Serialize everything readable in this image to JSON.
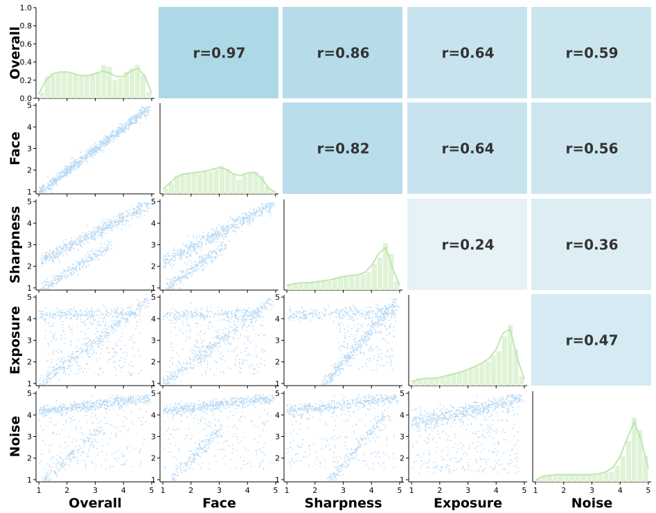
{
  "chart_data": {
    "type": "pairplot",
    "variables": [
      "Overall",
      "Face",
      "Sharpness",
      "Exposure",
      "Noise"
    ],
    "axis_range": [
      0.9,
      5.1
    ],
    "ticks": [
      "1",
      "2",
      "3",
      "4",
      "5"
    ],
    "density_axis": {
      "range": [
        0,
        1.0
      ],
      "ticks": [
        "0.0",
        "0.2",
        "0.4",
        "0.6",
        "0.8",
        "1.0"
      ]
    },
    "colors": {
      "scatter": "#9ecbf0",
      "hist_fill": "#dff3d6",
      "kde_line": "#bfe6b0",
      "corr_high": "#add8e6",
      "corr_low": "#eaf3f8",
      "corr_text": "#333333"
    },
    "correlations": [
      {
        "row": "Overall",
        "col": "Face",
        "label": "r=0.97",
        "value": 0.97
      },
      {
        "row": "Overall",
        "col": "Sharpness",
        "label": "r=0.86",
        "value": 0.86
      },
      {
        "row": "Overall",
        "col": "Exposure",
        "label": "r=0.64",
        "value": 0.64
      },
      {
        "row": "Overall",
        "col": "Noise",
        "label": "r=0.59",
        "value": 0.59
      },
      {
        "row": "Face",
        "col": "Sharpness",
        "label": "r=0.82",
        "value": 0.82
      },
      {
        "row": "Face",
        "col": "Exposure",
        "label": "r=0.64",
        "value": 0.64
      },
      {
        "row": "Face",
        "col": "Noise",
        "label": "r=0.56",
        "value": 0.56
      },
      {
        "row": "Sharpness",
        "col": "Exposure",
        "label": "r=0.24",
        "value": 0.24
      },
      {
        "row": "Sharpness",
        "col": "Noise",
        "label": "r=0.36",
        "value": 0.36
      },
      {
        "row": "Exposure",
        "col": "Noise",
        "label": "r=0.47",
        "value": 0.47
      }
    ],
    "histograms": {
      "bin_edges": [
        1.0,
        1.2,
        1.4,
        1.6,
        1.8,
        2.0,
        2.2,
        2.4,
        2.6,
        2.8,
        3.0,
        3.2,
        3.4,
        3.6,
        3.8,
        4.0,
        4.2,
        4.4,
        4.6,
        4.8,
        5.0
      ],
      "Overall": [
        0.06,
        0.24,
        0.26,
        0.28,
        0.29,
        0.27,
        0.26,
        0.25,
        0.25,
        0.27,
        0.29,
        0.37,
        0.35,
        0.2,
        0.22,
        0.29,
        0.33,
        0.37,
        0.26,
        0.07
      ],
      "Face": [
        0.06,
        0.12,
        0.2,
        0.21,
        0.22,
        0.23,
        0.23,
        0.24,
        0.25,
        0.27,
        0.31,
        0.27,
        0.22,
        0.16,
        0.21,
        0.24,
        0.24,
        0.2,
        0.08,
        0.03
      ],
      "Sharpness": [
        0.07,
        0.08,
        0.08,
        0.09,
        0.09,
        0.09,
        0.1,
        0.1,
        0.12,
        0.14,
        0.16,
        0.16,
        0.17,
        0.17,
        0.2,
        0.29,
        0.36,
        0.52,
        0.4,
        0.1
      ],
      "Exposure": [
        0.06,
        0.08,
        0.08,
        0.08,
        0.09,
        0.1,
        0.12,
        0.14,
        0.15,
        0.16,
        0.19,
        0.21,
        0.24,
        0.27,
        0.33,
        0.38,
        0.54,
        0.67,
        0.4,
        0.1
      ],
      "Noise": [
        0.03,
        0.07,
        0.08,
        0.08,
        0.08,
        0.08,
        0.08,
        0.08,
        0.08,
        0.08,
        0.08,
        0.09,
        0.1,
        0.11,
        0.18,
        0.28,
        0.45,
        0.71,
        0.57,
        0.29
      ]
    },
    "kde": {
      "x": [
        1.0,
        1.25,
        1.5,
        1.75,
        2.0,
        2.25,
        2.5,
        2.75,
        3.0,
        3.25,
        3.5,
        3.75,
        4.0,
        4.25,
        4.5,
        4.75,
        5.0
      ],
      "Overall": [
        0.05,
        0.2,
        0.27,
        0.29,
        0.29,
        0.27,
        0.25,
        0.25,
        0.27,
        0.3,
        0.28,
        0.24,
        0.24,
        0.3,
        0.33,
        0.25,
        0.06
      ],
      "Face": [
        0.05,
        0.12,
        0.19,
        0.22,
        0.23,
        0.24,
        0.25,
        0.27,
        0.29,
        0.27,
        0.22,
        0.2,
        0.23,
        0.24,
        0.17,
        0.06,
        0.02
      ],
      "Sharpness": [
        0.05,
        0.07,
        0.08,
        0.08,
        0.09,
        0.1,
        0.11,
        0.13,
        0.15,
        0.16,
        0.17,
        0.19,
        0.27,
        0.4,
        0.47,
        0.24,
        0.05
      ],
      "Exposure": [
        0.04,
        0.07,
        0.08,
        0.08,
        0.09,
        0.11,
        0.13,
        0.15,
        0.18,
        0.21,
        0.25,
        0.3,
        0.4,
        0.58,
        0.62,
        0.3,
        0.07
      ],
      "Noise": [
        0.02,
        0.06,
        0.07,
        0.08,
        0.08,
        0.08,
        0.08,
        0.08,
        0.08,
        0.09,
        0.11,
        0.16,
        0.28,
        0.48,
        0.66,
        0.45,
        0.15
      ]
    },
    "scatter_relationships": {
      "Face|Overall": {
        "segments": [
          {
            "x0": 1.0,
            "y0": 1.0,
            "x1": 4.9,
            "y1": 4.9,
            "w": 0.12,
            "share": 0.97
          }
        ]
      },
      "Sharpness|Overall": {
        "segments": [
          {
            "x0": 1.0,
            "y0": 2.2,
            "x1": 4.9,
            "y1": 4.9,
            "w": 0.15,
            "share": 0.65
          },
          {
            "x0": 1.1,
            "y0": 1.0,
            "x1": 3.5,
            "y1": 3.0,
            "w": 0.14,
            "share": 0.3
          }
        ]
      },
      "Sharpness|Face": {
        "segments": [
          {
            "x0": 1.0,
            "y0": 2.2,
            "x1": 4.9,
            "y1": 4.9,
            "w": 0.17,
            "share": 0.65
          },
          {
            "x0": 1.1,
            "y0": 1.0,
            "x1": 3.2,
            "y1": 3.0,
            "w": 0.15,
            "share": 0.3
          }
        ]
      },
      "Exposure|Overall": {
        "segments": [
          {
            "x0": 1.0,
            "y0": 1.0,
            "x1": 4.9,
            "y1": 4.9,
            "w": 0.15,
            "share": 0.4
          },
          {
            "x0": 1.0,
            "y0": 4.2,
            "x1": 4.4,
            "y1": 4.3,
            "w": 0.15,
            "share": 0.25
          }
        ],
        "fill": {
          "x": [
            1.2,
            4.6
          ],
          "y": [
            1.4,
            4.4
          ],
          "share": 0.3
        }
      },
      "Exposure|Face": {
        "segments": [
          {
            "x0": 1.0,
            "y0": 1.0,
            "x1": 4.9,
            "y1": 4.9,
            "w": 0.16,
            "share": 0.4
          },
          {
            "x0": 1.0,
            "y0": 4.2,
            "x1": 4.4,
            "y1": 4.3,
            "w": 0.15,
            "share": 0.25
          }
        ],
        "fill": {
          "x": [
            1.2,
            4.6
          ],
          "y": [
            1.4,
            4.4
          ],
          "share": 0.3
        }
      },
      "Exposure|Sharpness": {
        "segments": [
          {
            "x0": 1.0,
            "y0": 4.2,
            "x1": 4.9,
            "y1": 4.3,
            "w": 0.14,
            "share": 0.3
          },
          {
            "x0": 2.3,
            "y0": 1.0,
            "x1": 4.9,
            "y1": 4.9,
            "w": 0.15,
            "share": 0.4
          }
        ],
        "fill": {
          "x": [
            2.8,
            4.8
          ],
          "y": [
            1.6,
            4.6
          ],
          "share": 0.25
        }
      },
      "Noise|Overall": {
        "segments": [
          {
            "x0": 1.0,
            "y0": 4.2,
            "x1": 4.9,
            "y1": 4.8,
            "w": 0.12,
            "share": 0.55
          },
          {
            "x0": 1.2,
            "y0": 1.0,
            "x1": 3.2,
            "y1": 3.4,
            "w": 0.18,
            "share": 0.18
          }
        ],
        "fill": {
          "x": [
            1.0,
            4.8
          ],
          "y": [
            1.5,
            4.4
          ],
          "share": 0.22
        }
      },
      "Noise|Face": {
        "segments": [
          {
            "x0": 1.0,
            "y0": 4.2,
            "x1": 4.9,
            "y1": 4.8,
            "w": 0.12,
            "share": 0.55
          },
          {
            "x0": 1.3,
            "y0": 1.0,
            "x1": 3.0,
            "y1": 3.4,
            "w": 0.18,
            "share": 0.18
          }
        ],
        "fill": {
          "x": [
            1.0,
            4.8
          ],
          "y": [
            1.5,
            4.4
          ],
          "share": 0.22
        }
      },
      "Noise|Sharpness": {
        "segments": [
          {
            "x0": 1.0,
            "y0": 4.2,
            "x1": 4.9,
            "y1": 4.8,
            "w": 0.13,
            "share": 0.5
          },
          {
            "x0": 2.5,
            "y0": 1.0,
            "x1": 4.5,
            "y1": 4.0,
            "w": 0.16,
            "share": 0.22
          }
        ],
        "fill": {
          "x": [
            1.0,
            4.8
          ],
          "y": [
            1.5,
            4.4
          ],
          "share": 0.22
        }
      },
      "Noise|Exposure": {
        "segments": [
          {
            "x0": 1.0,
            "y0": 3.6,
            "x1": 4.9,
            "y1": 4.8,
            "w": 0.18,
            "share": 0.6
          }
        ],
        "fill": {
          "x": [
            1.0,
            4.8
          ],
          "y": [
            1.3,
            4.4
          ],
          "share": 0.35
        }
      }
    }
  }
}
